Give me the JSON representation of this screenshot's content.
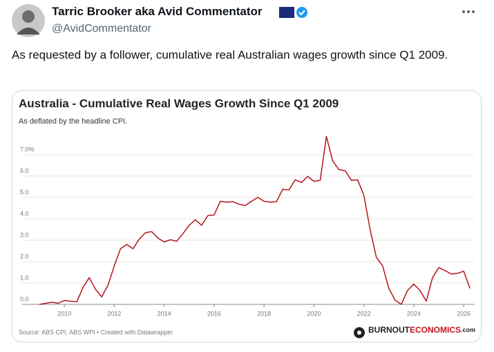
{
  "tweet": {
    "name": "Tarric Brooker aka Avid Commentator",
    "handle": "@AvidCommentator",
    "text": "As requested by a follower, cumulative real Australian wages growth since Q1 2009."
  },
  "chart_data": {
    "type": "line",
    "title": "Australia - Cumulative Real Wages Growth Since Q1 2009",
    "subtitle": "As deflated by the headline CPI.",
    "source": "Source: ABS CPI, ABS WPI • Created with Datawrapper",
    "logo": [
      "BURNOUT",
      "ECONOMICS",
      ".com"
    ],
    "color": "#b5121b",
    "x": [
      2009,
      2009.25,
      2009.5,
      2009.75,
      2010,
      2010.25,
      2010.5,
      2010.75,
      2011,
      2011.25,
      2011.5,
      2011.75,
      2012,
      2012.25,
      2012.5,
      2012.75,
      2013,
      2013.25,
      2013.5,
      2013.75,
      2014,
      2014.25,
      2014.5,
      2014.75,
      2015,
      2015.25,
      2015.5,
      2015.75,
      2016,
      2016.25,
      2016.5,
      2016.75,
      2017,
      2017.25,
      2017.5,
      2017.75,
      2018,
      2018.25,
      2018.5,
      2018.75,
      2019,
      2019.25,
      2019.5,
      2019.75,
      2020,
      2020.25,
      2020.5,
      2020.75,
      2021,
      2021.25,
      2021.5,
      2021.75,
      2022,
      2022.25,
      2022.5,
      2022.75,
      2023,
      2023.25,
      2023.5,
      2023.75,
      2024,
      2024.25,
      2024.5,
      2024.75,
      2025,
      2025.25,
      2025.5,
      2025.75,
      2026,
      2026.25
    ],
    "values": [
      0.0,
      0.05,
      0.1,
      0.05,
      0.18,
      0.15,
      0.12,
      0.8,
      1.25,
      0.7,
      0.35,
      0.9,
      1.8,
      2.6,
      2.8,
      2.6,
      3.05,
      3.35,
      3.4,
      3.1,
      2.92,
      3.02,
      2.95,
      3.3,
      3.7,
      3.95,
      3.7,
      4.15,
      4.18,
      4.82,
      4.78,
      4.8,
      4.68,
      4.62,
      4.82,
      5.0,
      4.82,
      4.78,
      4.8,
      5.38,
      5.35,
      5.82,
      5.7,
      5.98,
      5.75,
      5.8,
      7.85,
      6.7,
      6.3,
      6.25,
      5.8,
      5.82,
      5.1,
      3.5,
      2.2,
      1.8,
      0.75,
      0.2,
      0.0,
      0.65,
      0.95,
      0.65,
      0.15,
      1.25,
      1.72,
      1.58,
      1.42,
      1.45,
      1.55,
      0.75
    ],
    "xlim": [
      2009,
      2026.3
    ],
    "xticks": [
      2010,
      2012,
      2014,
      2016,
      2018,
      2020,
      2022,
      2024,
      2026
    ],
    "ylim": [
      0,
      8
    ],
    "yticks": [
      {
        "value": 0,
        "label": "0.0"
      },
      {
        "value": 1,
        "label": "1.0"
      },
      {
        "value": 2,
        "label": "2.0"
      },
      {
        "value": 3,
        "label": "3.0"
      },
      {
        "value": 4,
        "label": "4.0"
      },
      {
        "value": 5,
        "label": "5.0"
      },
      {
        "value": 6,
        "label": "6.0"
      },
      {
        "value": 7,
        "label": "7.0%"
      }
    ],
    "grid": true
  }
}
